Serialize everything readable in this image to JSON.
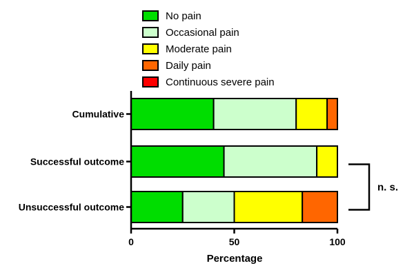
{
  "chart_data": {
    "type": "bar",
    "orientation": "horizontal",
    "stacked": true,
    "title": "",
    "xlabel": "Percentage",
    "ylabel": "",
    "xlim": [
      0,
      100
    ],
    "xticks": [
      0,
      50,
      100
    ],
    "categories": [
      "Cumulative",
      "Successful outcome",
      "Unsuccessful outcome"
    ],
    "series": [
      {
        "name": "No pain",
        "color": "#00dd00",
        "values": [
          40,
          45,
          25
        ]
      },
      {
        "name": "Occasional pain",
        "color": "#ccffcc",
        "values": [
          40,
          45,
          25
        ]
      },
      {
        "name": "Moderate pain",
        "color": "#ffff00",
        "values": [
          15,
          10,
          33
        ]
      },
      {
        "name": "Daily pain",
        "color": "#ff6600",
        "values": [
          5,
          0,
          17
        ]
      },
      {
        "name": "Continuous severe pain",
        "color": "#ff0000",
        "values": [
          0,
          0,
          0
        ]
      }
    ],
    "legend_position": "top",
    "grid": false,
    "annotation": {
      "text": "n. s.",
      "between": [
        "Successful outcome",
        "Unsuccessful outcome"
      ]
    }
  }
}
